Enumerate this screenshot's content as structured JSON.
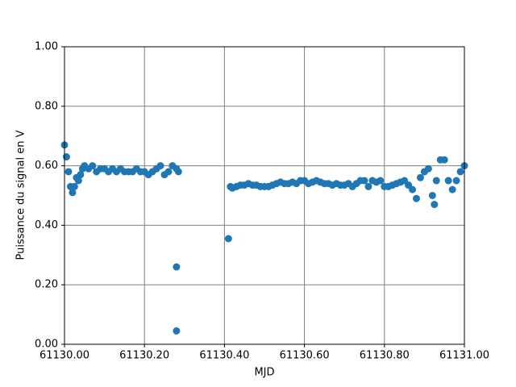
{
  "chart_data": {
    "type": "scatter",
    "xlabel": "MJD",
    "ylabel": "Puissance du signal en V",
    "xlim": [
      61130.0,
      61131.0
    ],
    "xticks": [
      {
        "value": 61130.0,
        "label": "61130.00"
      },
      {
        "value": 61130.2,
        "label": "61130.20"
      },
      {
        "value": 61130.4,
        "label": "61130.40"
      },
      {
        "value": 61130.6,
        "label": "61130.60"
      },
      {
        "value": 61130.8,
        "label": "61130.80"
      },
      {
        "value": 61131.0,
        "label": "61131.00"
      }
    ],
    "ylim": [
      0,
      1
    ],
    "yticks": [
      {
        "value": 0,
        "label": "0.00"
      },
      {
        "value": 0.2,
        "label": "0.20"
      },
      {
        "value": 0.4,
        "label": "0.40"
      },
      {
        "value": 0.6,
        "label": "0.60"
      },
      {
        "value": 0.8,
        "label": "0.80"
      },
      {
        "value": 1,
        "label": "1.00"
      }
    ],
    "grid": true,
    "color": "#1f77b4",
    "x": [
      61130.0,
      61130.005,
      61130.01,
      61130.015,
      61130.02,
      61130.025,
      61130.03,
      61130.035,
      61130.04,
      61130.045,
      61130.05,
      61130.06,
      61130.07,
      61130.08,
      61130.09,
      61130.1,
      61130.11,
      61130.12,
      61130.13,
      61130.14,
      61130.15,
      61130.16,
      61130.17,
      61130.18,
      61130.19,
      61130.2,
      61130.21,
      61130.22,
      61130.23,
      61130.24,
      61130.25,
      61130.26,
      61130.27,
      61130.28,
      61130.285,
      61130.28,
      61130.28,
      61130.41,
      61130.415,
      61130.42,
      61130.43,
      61130.44,
      61130.45,
      61130.46,
      61130.47,
      61130.48,
      61130.49,
      61130.5,
      61130.51,
      61130.52,
      61130.53,
      61130.54,
      61130.55,
      61130.56,
      61130.57,
      61130.58,
      61130.59,
      61130.6,
      61130.61,
      61130.62,
      61130.63,
      61130.64,
      61130.65,
      61130.66,
      61130.67,
      61130.68,
      61130.69,
      61130.7,
      61130.71,
      61130.72,
      61130.73,
      61130.74,
      61130.75,
      61130.76,
      61130.77,
      61130.78,
      61130.79,
      61130.8,
      61130.81,
      61130.82,
      61130.83,
      61130.84,
      61130.85,
      61130.86,
      61130.87,
      61130.88,
      61130.89,
      61130.9,
      61130.91,
      61130.92,
      61130.925,
      61130.93,
      61130.94,
      61130.95,
      61130.96,
      61130.97,
      61130.98,
      61130.99,
      61131.0
    ],
    "values": [
      0.67,
      0.63,
      0.58,
      0.53,
      0.51,
      0.53,
      0.56,
      0.55,
      0.57,
      0.59,
      0.6,
      0.59,
      0.6,
      0.58,
      0.59,
      0.59,
      0.58,
      0.59,
      0.58,
      0.59,
      0.58,
      0.58,
      0.58,
      0.59,
      0.58,
      0.58,
      0.57,
      0.58,
      0.59,
      0.6,
      0.57,
      0.58,
      0.6,
      0.59,
      0.58,
      0.26,
      0.045,
      0.355,
      0.53,
      0.525,
      0.53,
      0.535,
      0.535,
      0.54,
      0.535,
      0.535,
      0.53,
      0.53,
      0.53,
      0.535,
      0.54,
      0.545,
      0.54,
      0.54,
      0.545,
      0.54,
      0.55,
      0.55,
      0.54,
      0.545,
      0.55,
      0.545,
      0.54,
      0.54,
      0.535,
      0.54,
      0.535,
      0.535,
      0.54,
      0.53,
      0.54,
      0.55,
      0.55,
      0.53,
      0.55,
      0.545,
      0.55,
      0.53,
      0.53,
      0.535,
      0.54,
      0.545,
      0.55,
      0.535,
      0.52,
      0.49,
      0.56,
      0.58,
      0.59,
      0.5,
      0.47,
      0.55,
      0.62,
      0.62,
      0.55,
      0.52,
      0.55,
      0.58,
      0.6
    ]
  }
}
